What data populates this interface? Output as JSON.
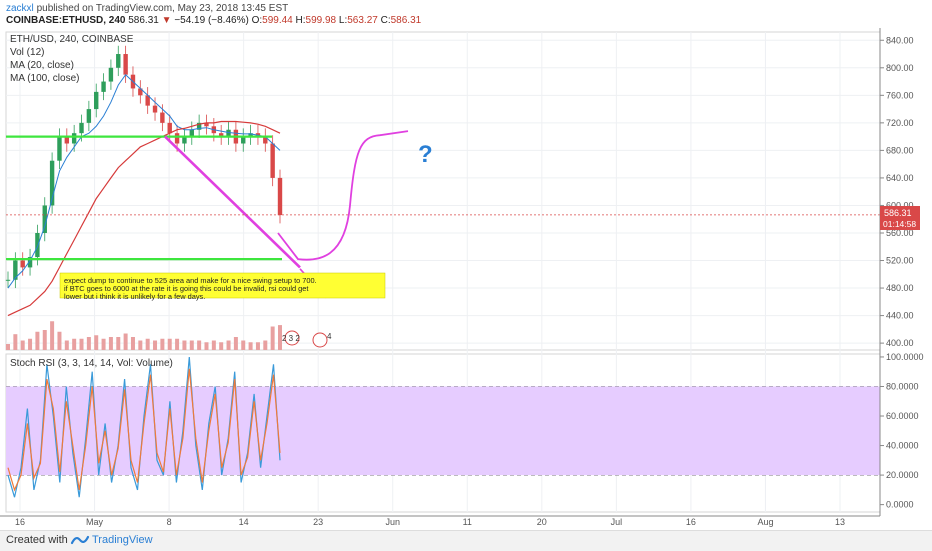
{
  "header": {
    "author": "zackxl",
    "published": "published on TradingView.com, May 23, 2018 13:45 EST",
    "symbol": "COINBASE:ETHUSD, 240",
    "last": "586.31",
    "change": "−54.19 (−8.46%)",
    "o_label": "O:",
    "o_value": "599.44",
    "h_label": "H:",
    "h_value": "599.98",
    "l_label": "L:",
    "l_value": "563.27",
    "c_label": "C:",
    "c_value": "586.31"
  },
  "legend": {
    "title": "ETH/USD, 240, COINBASE",
    "vol": "Vol (12)",
    "ma20": "MA (20, close)",
    "ma100": "MA (100, close)"
  },
  "price_badge": {
    "price": "586.31",
    "countdown": "01:14:58"
  },
  "annotation": {
    "lines": [
      "expect dump to continue to 525 area and make for a nice swing setup to 700.",
      "if BTC goes to 6000 at the rate it is going this could be invalid, rsi could get",
      "lower but i think it is unlikely for a few days."
    ],
    "question_mark": "?"
  },
  "events": {
    "earnings_label": "2 3 2",
    "dividend_label": "4"
  },
  "rsi": {
    "label": "Stoch RSI (3, 3, 14, 14, Vol: Volume)"
  },
  "footer": {
    "created": "Created with",
    "brand": "TradingView"
  },
  "colors": {
    "up": "#2e9e5b",
    "down": "#d94848",
    "ma20": "#2a7fd4",
    "ma100": "#d63a3a",
    "level": "#3ee63e",
    "drawing": "#e040e0",
    "rsi_band": "#e6ccff",
    "rsi_k": "#3a9ad9",
    "rsi_d": "#f07a3a",
    "question": "#2a7fd4",
    "note_bg": "#ffff33"
  },
  "chart_data": [
    {
      "type": "candlestick",
      "title": "ETH/USD, 240, COINBASE",
      "price_axis_ticks": [
        "840.00",
        "800.00",
        "760.00",
        "720.00",
        "680.00",
        "640.00",
        "600.00",
        "560.00",
        "520.00",
        "480.00",
        "440.00",
        "400.00"
      ],
      "ylim": [
        390,
        852
      ],
      "x_axis_ticks": [
        "16",
        "May",
        "8",
        "14",
        "23",
        "Jun",
        "11",
        "20",
        "Jul",
        "16",
        "Aug",
        "13"
      ],
      "key_levels": [
        700,
        522
      ],
      "last_price": 586.31,
      "trend_line_from": 700,
      "trend_line_to": 510,
      "close_path": [
        492,
        520,
        510,
        525,
        560,
        600,
        665,
        700,
        690,
        705,
        720,
        740,
        765,
        780,
        800,
        820,
        790,
        770,
        760,
        745,
        735,
        720,
        705,
        690,
        700,
        710,
        720,
        715,
        705,
        700,
        710,
        690,
        700,
        705,
        700,
        690,
        640,
        586
      ],
      "ma20": [
        480,
        495,
        505,
        520,
        540,
        570,
        610,
        650,
        670,
        685,
        700,
        705,
        715,
        730,
        750,
        775,
        790,
        780,
        770,
        760,
        750,
        740,
        730,
        715,
        710,
        710,
        712,
        713,
        710,
        708,
        706,
        705,
        704,
        704,
        702,
        700,
        690,
        680
      ],
      "ma100": [
        440,
        445,
        450,
        455,
        465,
        475,
        490,
        510,
        530,
        550,
        570,
        590,
        610,
        625,
        640,
        655,
        665,
        675,
        685,
        690,
        695,
        700,
        705,
        710,
        712,
        715,
        718,
        720,
        720,
        722,
        722,
        722,
        721,
        720,
        718,
        715,
        710,
        705
      ]
    },
    {
      "type": "line",
      "title": "Stoch RSI (3, 3, 14, 14, Vol: Volume)",
      "y_axis_ticks": [
        "100.0000",
        "80.0000",
        "60.0000",
        "40.0000",
        "20.0000",
        "0.0000"
      ],
      "ylim": [
        -5,
        102
      ],
      "band": [
        20,
        80
      ],
      "series": [
        {
          "values": [
            20,
            5,
            25,
            65,
            10,
            30,
            95,
            60,
            15,
            80,
            35,
            5,
            45,
            90,
            20,
            55,
            15,
            40,
            85,
            25,
            10,
            60,
            95,
            30,
            20,
            70,
            15,
            50,
            100,
            40,
            10,
            55,
            80,
            20,
            45,
            90,
            15,
            35,
            75,
            25,
            60,
            95,
            30
          ]
        },
        {
          "values": [
            25,
            10,
            20,
            55,
            18,
            28,
            85,
            65,
            22,
            70,
            40,
            10,
            40,
            80,
            28,
            50,
            20,
            38,
            78,
            30,
            15,
            55,
            88,
            35,
            22,
            65,
            20,
            45,
            92,
            45,
            15,
            50,
            75,
            25,
            42,
            85,
            20,
            32,
            70,
            30,
            55,
            88,
            35
          ]
        }
      ]
    }
  ]
}
